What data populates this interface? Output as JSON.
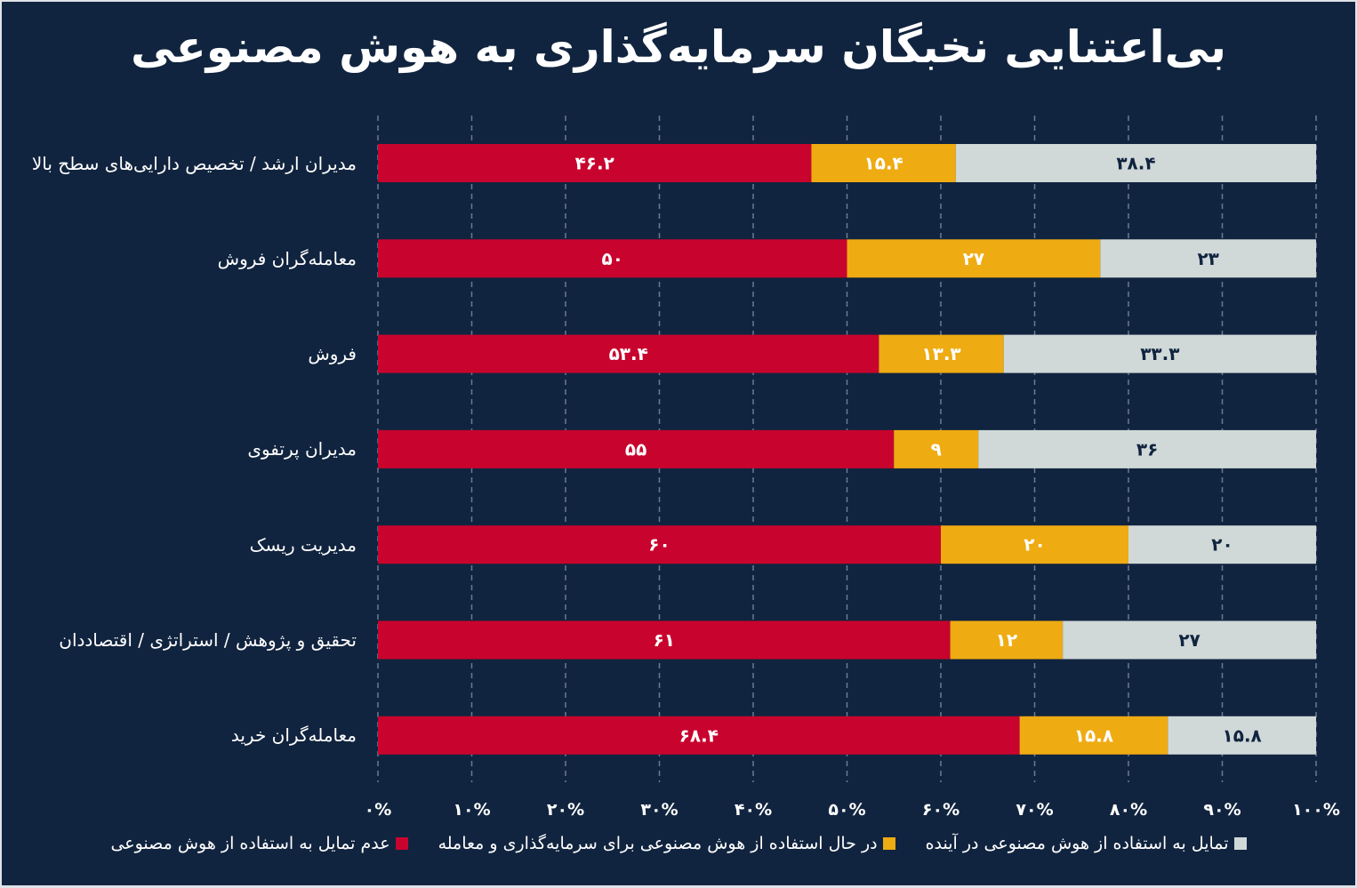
{
  "chart_data": {
    "type": "bar",
    "orientation": "horizontal",
    "stacked": true,
    "title": "بی‌اعتنایی نخبگان سرمایه‌گذاری به هوش مصنوعی",
    "categories": [
      "مدیران ارشد / تخصیص دارایی‌های سطح بالا",
      "معامله‌گران فروش",
      "فروش",
      "مدیران پرتفوی",
      "مدیریت ریسک",
      "تحقیق و پژوهش / استراتژی / اقتصاددان",
      "معامله‌گران خرید"
    ],
    "series": [
      {
        "name": "عدم تمایل به استفاده از هوش مصنوعی",
        "color": "#c8042e",
        "values": [
          46.2,
          50,
          53.4,
          55,
          60,
          61,
          68.4
        ]
      },
      {
        "name": "در حال استفاده از هوش مصنوعی برای سرمایه‌گذاری و معامله",
        "color": "#eeab12",
        "values": [
          15.4,
          27,
          13.3,
          9,
          20,
          12,
          15.8
        ]
      },
      {
        "name": "تمایل به استفاده از هوش مصنوعی در آینده",
        "color": "#d0d9d8",
        "values": [
          38.4,
          23,
          33.3,
          36,
          20,
          27,
          15.8
        ]
      }
    ],
    "xlim": [
      0,
      100
    ],
    "xticks": [
      "۰%",
      "۱۰%",
      "۲۰%",
      "۳۰%",
      "۴۰%",
      "۵۰%",
      "۶۰%",
      "۷۰%",
      "۸۰%",
      "۹۰%",
      "۱۰۰%"
    ],
    "grid": "vertical dashed",
    "legend": "bottom"
  },
  "colors": {
    "background": "#11243f",
    "grid": "#6b7a90"
  }
}
